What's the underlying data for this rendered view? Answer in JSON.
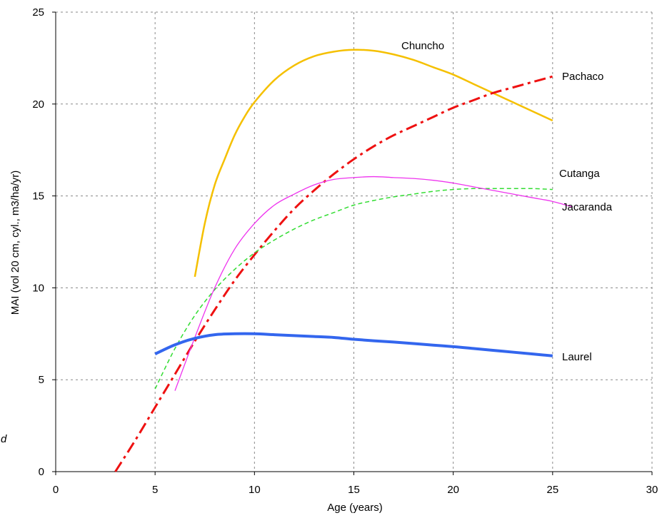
{
  "chart_data": {
    "type": "line",
    "title": "",
    "xlabel": "Age (years)",
    "ylabel": "MAI (vol 20 cm, cyl., m3/ha/yr)",
    "xlim": [
      0,
      30
    ],
    "ylim": [
      0,
      25
    ],
    "xticks": [
      "0",
      "5",
      "10",
      "15",
      "20",
      "25",
      "30"
    ],
    "yticks": [
      "0",
      "5",
      "10",
      "15",
      "20",
      "25"
    ],
    "grid": true,
    "legend": "none",
    "stray_text": "d",
    "series": [
      {
        "name": "Chuncho",
        "color": "#f5c000",
        "dash": "solid",
        "x": [
          7,
          7.5,
          8,
          8.5,
          9,
          9.5,
          10,
          11,
          12,
          13,
          14,
          15,
          16,
          17,
          18,
          19,
          20,
          21,
          22,
          23,
          24,
          25
        ],
        "y": [
          10.6,
          13.5,
          15.6,
          17.0,
          18.3,
          19.3,
          20.1,
          21.3,
          22.1,
          22.6,
          22.85,
          22.95,
          22.9,
          22.7,
          22.4,
          22.0,
          21.6,
          21.1,
          20.6,
          20.1,
          19.6,
          19.1
        ]
      },
      {
        "name": "Pachaco",
        "color": "#ee1111",
        "dash": "dashdot",
        "x": [
          3,
          4,
          5,
          6,
          7,
          8,
          9,
          10,
          11,
          12,
          13,
          14,
          15,
          16,
          17,
          18,
          19,
          20,
          21,
          22,
          23,
          24,
          25
        ],
        "y": [
          0.0,
          1.7,
          3.5,
          5.3,
          7.1,
          8.8,
          10.4,
          11.8,
          13.1,
          14.3,
          15.3,
          16.2,
          17.0,
          17.7,
          18.3,
          18.8,
          19.3,
          19.8,
          20.2,
          20.6,
          20.9,
          21.2,
          21.5
        ]
      },
      {
        "name": "Cutanga",
        "color": "#33dd33",
        "dash": "dashed",
        "x": [
          5,
          6,
          7,
          8,
          9,
          10,
          11,
          12,
          13,
          14,
          15,
          16,
          17,
          18,
          19,
          20,
          21,
          22,
          23,
          24,
          25
        ],
        "y": [
          4.5,
          6.7,
          8.5,
          9.9,
          11.0,
          11.9,
          12.6,
          13.2,
          13.7,
          14.1,
          14.5,
          14.75,
          14.95,
          15.1,
          15.25,
          15.35,
          15.4,
          15.4,
          15.4,
          15.4,
          15.35
        ]
      },
      {
        "name": "Jacaranda",
        "color": "#ee33ee",
        "dash": "solid",
        "x": [
          6,
          7,
          8,
          9,
          10,
          11,
          12,
          13,
          14,
          15,
          16,
          17,
          18,
          19,
          20,
          21,
          22,
          23,
          24,
          25,
          26
        ],
        "y": [
          4.4,
          7.3,
          10.0,
          12.1,
          13.5,
          14.5,
          15.1,
          15.6,
          15.9,
          16.0,
          16.05,
          16.0,
          15.95,
          15.85,
          15.7,
          15.5,
          15.3,
          15.1,
          14.9,
          14.7,
          14.4
        ]
      },
      {
        "name": "Laurel",
        "color": "#3366ee",
        "dash": "solid",
        "x": [
          5,
          6,
          7,
          8,
          9,
          10,
          11,
          12,
          13,
          14,
          15,
          16,
          17,
          18,
          19,
          20,
          21,
          22,
          23,
          24,
          25
        ],
        "y": [
          6.4,
          6.9,
          7.25,
          7.45,
          7.5,
          7.5,
          7.45,
          7.4,
          7.35,
          7.3,
          7.2,
          7.12,
          7.05,
          6.97,
          6.88,
          6.8,
          6.7,
          6.6,
          6.5,
          6.4,
          6.3
        ]
      }
    ]
  }
}
